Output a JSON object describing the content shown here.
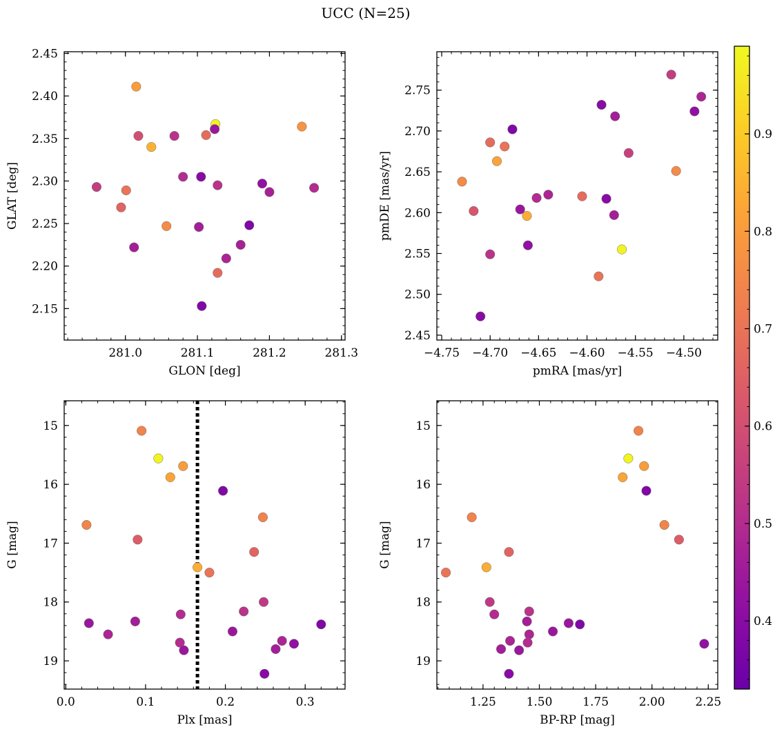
{
  "figure": {
    "title": "UCC (N=25)"
  },
  "colorbar": {
    "colormap": "plasma",
    "range": [
      0.33,
      0.99
    ],
    "ticks": [
      0.4,
      0.5,
      0.6,
      0.7,
      0.8,
      0.9
    ],
    "tick_labels": [
      "0.4",
      "0.5",
      "0.6",
      "0.7",
      "0.8",
      "0.9"
    ]
  },
  "chart_data": [
    {
      "type": "scatter",
      "xlabel": "GLON [deg]",
      "ylabel": "GLAT [deg]",
      "xlim": [
        280.915,
        281.305
      ],
      "ylim": [
        2.113,
        2.452
      ],
      "xticks": [
        281.0,
        281.1,
        281.2,
        281.3
      ],
      "xtick_labels": [
        "281.0",
        "281.1",
        "281.2",
        "281.3"
      ],
      "yticks": [
        2.15,
        2.2,
        2.25,
        2.3,
        2.35,
        2.4,
        2.45
      ],
      "ytick_labels": [
        "2.15",
        "2.20",
        "2.25",
        "2.30",
        "2.35",
        "2.40",
        "2.45"
      ],
      "points": [
        {
          "x": 281.125,
          "y": 2.367,
          "c": 0.98
        },
        {
          "x": 281.015,
          "y": 2.411,
          "c": 0.8
        },
        {
          "x": 281.245,
          "y": 2.364,
          "c": 0.78
        },
        {
          "x": 281.036,
          "y": 2.34,
          "c": 0.85
        },
        {
          "x": 281.112,
          "y": 2.354,
          "c": 0.68
        },
        {
          "x": 281.018,
          "y": 2.353,
          "c": 0.6
        },
        {
          "x": 281.068,
          "y": 2.353,
          "c": 0.52
        },
        {
          "x": 281.124,
          "y": 2.361,
          "c": 0.44
        },
        {
          "x": 280.96,
          "y": 2.293,
          "c": 0.55
        },
        {
          "x": 281.001,
          "y": 2.289,
          "c": 0.7
        },
        {
          "x": 281.08,
          "y": 2.305,
          "c": 0.5
        },
        {
          "x": 281.105,
          "y": 2.305,
          "c": 0.4
        },
        {
          "x": 281.128,
          "y": 2.295,
          "c": 0.52
        },
        {
          "x": 281.19,
          "y": 2.297,
          "c": 0.42
        },
        {
          "x": 281.2,
          "y": 2.287,
          "c": 0.47
        },
        {
          "x": 281.262,
          "y": 2.292,
          "c": 0.5
        },
        {
          "x": 280.994,
          "y": 2.269,
          "c": 0.66
        },
        {
          "x": 281.057,
          "y": 2.247,
          "c": 0.76
        },
        {
          "x": 281.102,
          "y": 2.246,
          "c": 0.46
        },
        {
          "x": 281.172,
          "y": 2.248,
          "c": 0.38
        },
        {
          "x": 281.012,
          "y": 2.222,
          "c": 0.46
        },
        {
          "x": 281.16,
          "y": 2.225,
          "c": 0.47
        },
        {
          "x": 281.14,
          "y": 2.209,
          "c": 0.48
        },
        {
          "x": 281.128,
          "y": 2.192,
          "c": 0.68
        },
        {
          "x": 281.106,
          "y": 2.153,
          "c": 0.38
        }
      ]
    },
    {
      "type": "scatter",
      "xlabel": "pmRA [mas/yr]",
      "ylabel": "pmDE [mas/yr]",
      "xlim": [
        -4.755,
        -4.465
      ],
      "ylim": [
        2.444,
        2.797
      ],
      "xticks": [
        -4.75,
        -4.7,
        -4.65,
        -4.6,
        -4.55,
        -4.5
      ],
      "xtick_labels": [
        "−4.75",
        "−4.70",
        "−4.65",
        "−4.60",
        "−4.55",
        "−4.50"
      ],
      "yticks": [
        2.45,
        2.5,
        2.55,
        2.6,
        2.65,
        2.7,
        2.75
      ],
      "ytick_labels": [
        "2.45",
        "2.50",
        "2.55",
        "2.60",
        "2.65",
        "2.70",
        "2.75"
      ],
      "points": [
        {
          "x": -4.513,
          "y": 2.769,
          "c": 0.55
        },
        {
          "x": -4.482,
          "y": 2.742,
          "c": 0.48
        },
        {
          "x": -4.489,
          "y": 2.724,
          "c": 0.42
        },
        {
          "x": -4.585,
          "y": 2.732,
          "c": 0.4
        },
        {
          "x": -4.571,
          "y": 2.718,
          "c": 0.46
        },
        {
          "x": -4.677,
          "y": 2.702,
          "c": 0.38
        },
        {
          "x": -4.7,
          "y": 2.686,
          "c": 0.68
        },
        {
          "x": -4.685,
          "y": 2.681,
          "c": 0.7
        },
        {
          "x": -4.693,
          "y": 2.663,
          "c": 0.82
        },
        {
          "x": -4.557,
          "y": 2.673,
          "c": 0.56
        },
        {
          "x": -4.508,
          "y": 2.651,
          "c": 0.76
        },
        {
          "x": -4.729,
          "y": 2.638,
          "c": 0.76
        },
        {
          "x": -4.605,
          "y": 2.62,
          "c": 0.68
        },
        {
          "x": -4.64,
          "y": 2.622,
          "c": 0.48
        },
        {
          "x": -4.652,
          "y": 2.618,
          "c": 0.5
        },
        {
          "x": -4.58,
          "y": 2.617,
          "c": 0.4
        },
        {
          "x": -4.669,
          "y": 2.604,
          "c": 0.44
        },
        {
          "x": -4.717,
          "y": 2.602,
          "c": 0.62
        },
        {
          "x": -4.662,
          "y": 2.596,
          "c": 0.84
        },
        {
          "x": -4.572,
          "y": 2.597,
          "c": 0.46
        },
        {
          "x": -4.661,
          "y": 2.56,
          "c": 0.42
        },
        {
          "x": -4.564,
          "y": 2.555,
          "c": 0.98
        },
        {
          "x": -4.7,
          "y": 2.549,
          "c": 0.52
        },
        {
          "x": -4.588,
          "y": 2.522,
          "c": 0.7
        },
        {
          "x": -4.71,
          "y": 2.473,
          "c": 0.4
        }
      ]
    },
    {
      "type": "scatter",
      "xlabel": "Plx [mas]",
      "ylabel": "G [mag]",
      "y_inverted": true,
      "xlim": [
        -0.002,
        0.35
      ],
      "ylim": [
        19.48,
        14.58
      ],
      "vline": {
        "x": 0.165,
        "style": "dotted",
        "color": "#000000"
      },
      "xticks": [
        0.0,
        0.1,
        0.2,
        0.3
      ],
      "xtick_labels": [
        "0.0",
        "0.1",
        "0.2",
        "0.3"
      ],
      "yticks": [
        15,
        16,
        17,
        18,
        19
      ],
      "ytick_labels": [
        "15",
        "16",
        "17",
        "18",
        "19"
      ],
      "points": [
        {
          "x": 0.095,
          "y": 15.09,
          "c": 0.74
        },
        {
          "x": 0.116,
          "y": 15.56,
          "c": 0.98
        },
        {
          "x": 0.147,
          "y": 15.69,
          "c": 0.8
        },
        {
          "x": 0.131,
          "y": 15.88,
          "c": 0.82
        },
        {
          "x": 0.197,
          "y": 16.11,
          "c": 0.38
        },
        {
          "x": 0.247,
          "y": 16.56,
          "c": 0.74
        },
        {
          "x": 0.026,
          "y": 16.69,
          "c": 0.74
        },
        {
          "x": 0.09,
          "y": 16.94,
          "c": 0.64
        },
        {
          "x": 0.236,
          "y": 17.15,
          "c": 0.66
        },
        {
          "x": 0.165,
          "y": 17.41,
          "c": 0.84
        },
        {
          "x": 0.18,
          "y": 17.5,
          "c": 0.7
        },
        {
          "x": 0.248,
          "y": 18.0,
          "c": 0.54
        },
        {
          "x": 0.223,
          "y": 18.16,
          "c": 0.52
        },
        {
          "x": 0.144,
          "y": 18.21,
          "c": 0.5
        },
        {
          "x": 0.087,
          "y": 18.33,
          "c": 0.46
        },
        {
          "x": 0.029,
          "y": 18.36,
          "c": 0.44
        },
        {
          "x": 0.32,
          "y": 18.38,
          "c": 0.38
        },
        {
          "x": 0.209,
          "y": 18.5,
          "c": 0.44
        },
        {
          "x": 0.053,
          "y": 18.55,
          "c": 0.48
        },
        {
          "x": 0.271,
          "y": 18.66,
          "c": 0.48
        },
        {
          "x": 0.143,
          "y": 18.69,
          "c": 0.5
        },
        {
          "x": 0.286,
          "y": 18.71,
          "c": 0.42
        },
        {
          "x": 0.148,
          "y": 18.82,
          "c": 0.44
        },
        {
          "x": 0.263,
          "y": 18.8,
          "c": 0.46
        },
        {
          "x": 0.249,
          "y": 19.22,
          "c": 0.4
        }
      ]
    },
    {
      "type": "scatter",
      "xlabel": "BP-RP [mag]",
      "ylabel": "G [mag]",
      "y_inverted": true,
      "xlim": [
        1.045,
        2.292
      ],
      "ylim": [
        19.48,
        14.58
      ],
      "xticks": [
        1.25,
        1.5,
        1.75,
        2.0,
        2.25
      ],
      "xtick_labels": [
        "1.25",
        "1.50",
        "1.75",
        "2.00",
        "2.25"
      ],
      "yticks": [
        15,
        16,
        17,
        18,
        19
      ],
      "ytick_labels": [
        "15",
        "16",
        "17",
        "18",
        "19"
      ],
      "points": [
        {
          "x": 1.94,
          "y": 15.09,
          "c": 0.74
        },
        {
          "x": 1.895,
          "y": 15.56,
          "c": 0.98
        },
        {
          "x": 1.965,
          "y": 15.69,
          "c": 0.8
        },
        {
          "x": 1.87,
          "y": 15.88,
          "c": 0.82
        },
        {
          "x": 1.975,
          "y": 16.11,
          "c": 0.38
        },
        {
          "x": 1.2,
          "y": 16.56,
          "c": 0.74
        },
        {
          "x": 2.055,
          "y": 16.69,
          "c": 0.74
        },
        {
          "x": 2.12,
          "y": 16.94,
          "c": 0.64
        },
        {
          "x": 1.365,
          "y": 17.15,
          "c": 0.66
        },
        {
          "x": 1.265,
          "y": 17.41,
          "c": 0.84
        },
        {
          "x": 1.085,
          "y": 17.5,
          "c": 0.7
        },
        {
          "x": 1.28,
          "y": 18.0,
          "c": 0.54
        },
        {
          "x": 1.455,
          "y": 18.16,
          "c": 0.52
        },
        {
          "x": 1.3,
          "y": 18.21,
          "c": 0.5
        },
        {
          "x": 1.445,
          "y": 18.33,
          "c": 0.46
        },
        {
          "x": 1.63,
          "y": 18.36,
          "c": 0.44
        },
        {
          "x": 1.68,
          "y": 18.38,
          "c": 0.38
        },
        {
          "x": 1.56,
          "y": 18.5,
          "c": 0.44
        },
        {
          "x": 1.455,
          "y": 18.55,
          "c": 0.48
        },
        {
          "x": 1.37,
          "y": 18.66,
          "c": 0.48
        },
        {
          "x": 1.448,
          "y": 18.69,
          "c": 0.5
        },
        {
          "x": 2.232,
          "y": 18.71,
          "c": 0.42
        },
        {
          "x": 1.41,
          "y": 18.82,
          "c": 0.44
        },
        {
          "x": 1.33,
          "y": 18.8,
          "c": 0.46
        },
        {
          "x": 1.365,
          "y": 19.22,
          "c": 0.4
        }
      ]
    }
  ]
}
